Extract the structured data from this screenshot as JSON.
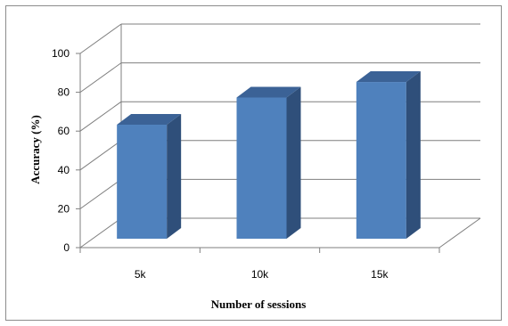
{
  "chart_data": {
    "type": "bar",
    "categories": [
      "5k",
      "10k",
      "15k"
    ],
    "values": [
      58,
      72,
      80
    ],
    "title": "",
    "xlabel": "Number of sessions",
    "ylabel": "Accuracy (%)",
    "ylim": [
      0,
      100
    ],
    "yticks": [
      "0",
      "20",
      "40",
      "60",
      "80",
      "100"
    ],
    "grid": true,
    "legend": "none",
    "colors": {
      "bar_front": "#4f81bd",
      "bar_side": "#2f4f7a",
      "bar_top": "#3b6296",
      "grid": "#7f7f7f"
    }
  }
}
